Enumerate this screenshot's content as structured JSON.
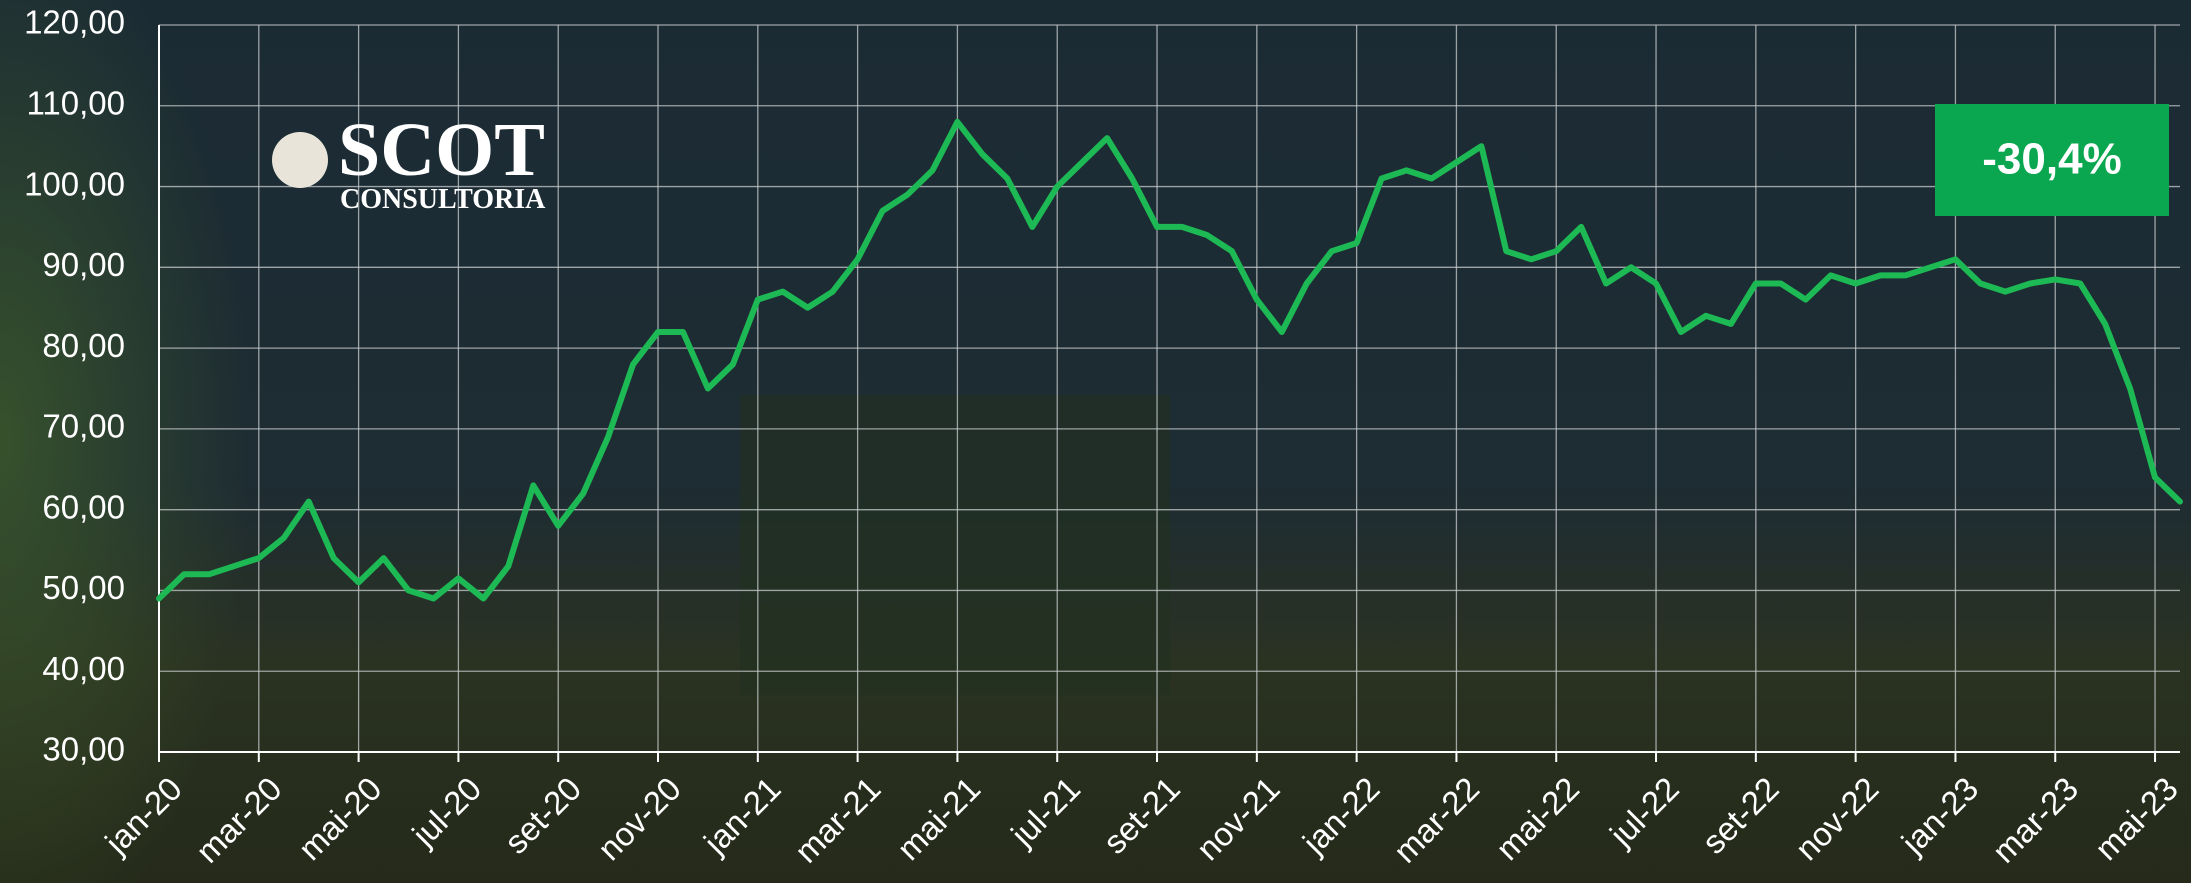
{
  "chart_data": {
    "type": "line",
    "categories": [
      "jan-20",
      null,
      null,
      null,
      "mar-20",
      null,
      null,
      null,
      "mai-20",
      null,
      null,
      null,
      "jul-20",
      null,
      null,
      null,
      "set-20",
      null,
      null,
      null,
      "nov-20",
      null,
      null,
      null,
      "jan-21",
      null,
      null,
      null,
      "mar-21",
      null,
      null,
      null,
      "mai-21",
      null,
      null,
      null,
      "jul-21",
      null,
      null,
      null,
      "set-21",
      null,
      null,
      null,
      "nov-21",
      null,
      null,
      null,
      "jan-22",
      null,
      null,
      null,
      "mar-22",
      null,
      null,
      null,
      "mai-22",
      null,
      null,
      null,
      "jul-22",
      null,
      null,
      null,
      "set-22",
      null,
      null,
      null,
      "nov-22",
      null,
      null,
      null,
      "jan-23",
      null,
      null,
      null,
      "mar-23",
      null,
      null,
      null,
      "mai-23",
      null
    ],
    "series": [
      {
        "color": "#1db954",
        "values": [
          49,
          52,
          52,
          53,
          54,
          56.5,
          61,
          54,
          51,
          54,
          50,
          49,
          51.5,
          49,
          53,
          63,
          58,
          62,
          69,
          78,
          82,
          82,
          75,
          78,
          86,
          87,
          85,
          87,
          91,
          97,
          99,
          102,
          108,
          104,
          101,
          95,
          100,
          103,
          106,
          101,
          95,
          95,
          94,
          92,
          86,
          82,
          88,
          92,
          93,
          101,
          102,
          101,
          103,
          105,
          92,
          91,
          92,
          95,
          88,
          90,
          88,
          82,
          84,
          83,
          88,
          88,
          86,
          89,
          88,
          89,
          89,
          90,
          91,
          88,
          87,
          88,
          88.5,
          88,
          83,
          75,
          64,
          61
        ]
      }
    ],
    "ylim": [
      30,
      120
    ],
    "yticks": [
      {
        "value": 30,
        "label": "30,00"
      },
      {
        "value": 40,
        "label": "40,00"
      },
      {
        "value": 50,
        "label": "50,00"
      },
      {
        "value": 60,
        "label": "60,00"
      },
      {
        "value": 70,
        "label": "70,00"
      },
      {
        "value": 80,
        "label": "80,00"
      },
      {
        "value": 90,
        "label": "90,00"
      },
      {
        "value": 100,
        "label": "100,00"
      },
      {
        "value": 110,
        "label": "110,00"
      },
      {
        "value": 120,
        "label": "120,00"
      }
    ],
    "grid": true,
    "annotation": "-30,4%",
    "annotation_color": "#0aa650"
  },
  "logo": {
    "name": "SCOT",
    "subtitle": "CONSULTORIA"
  }
}
